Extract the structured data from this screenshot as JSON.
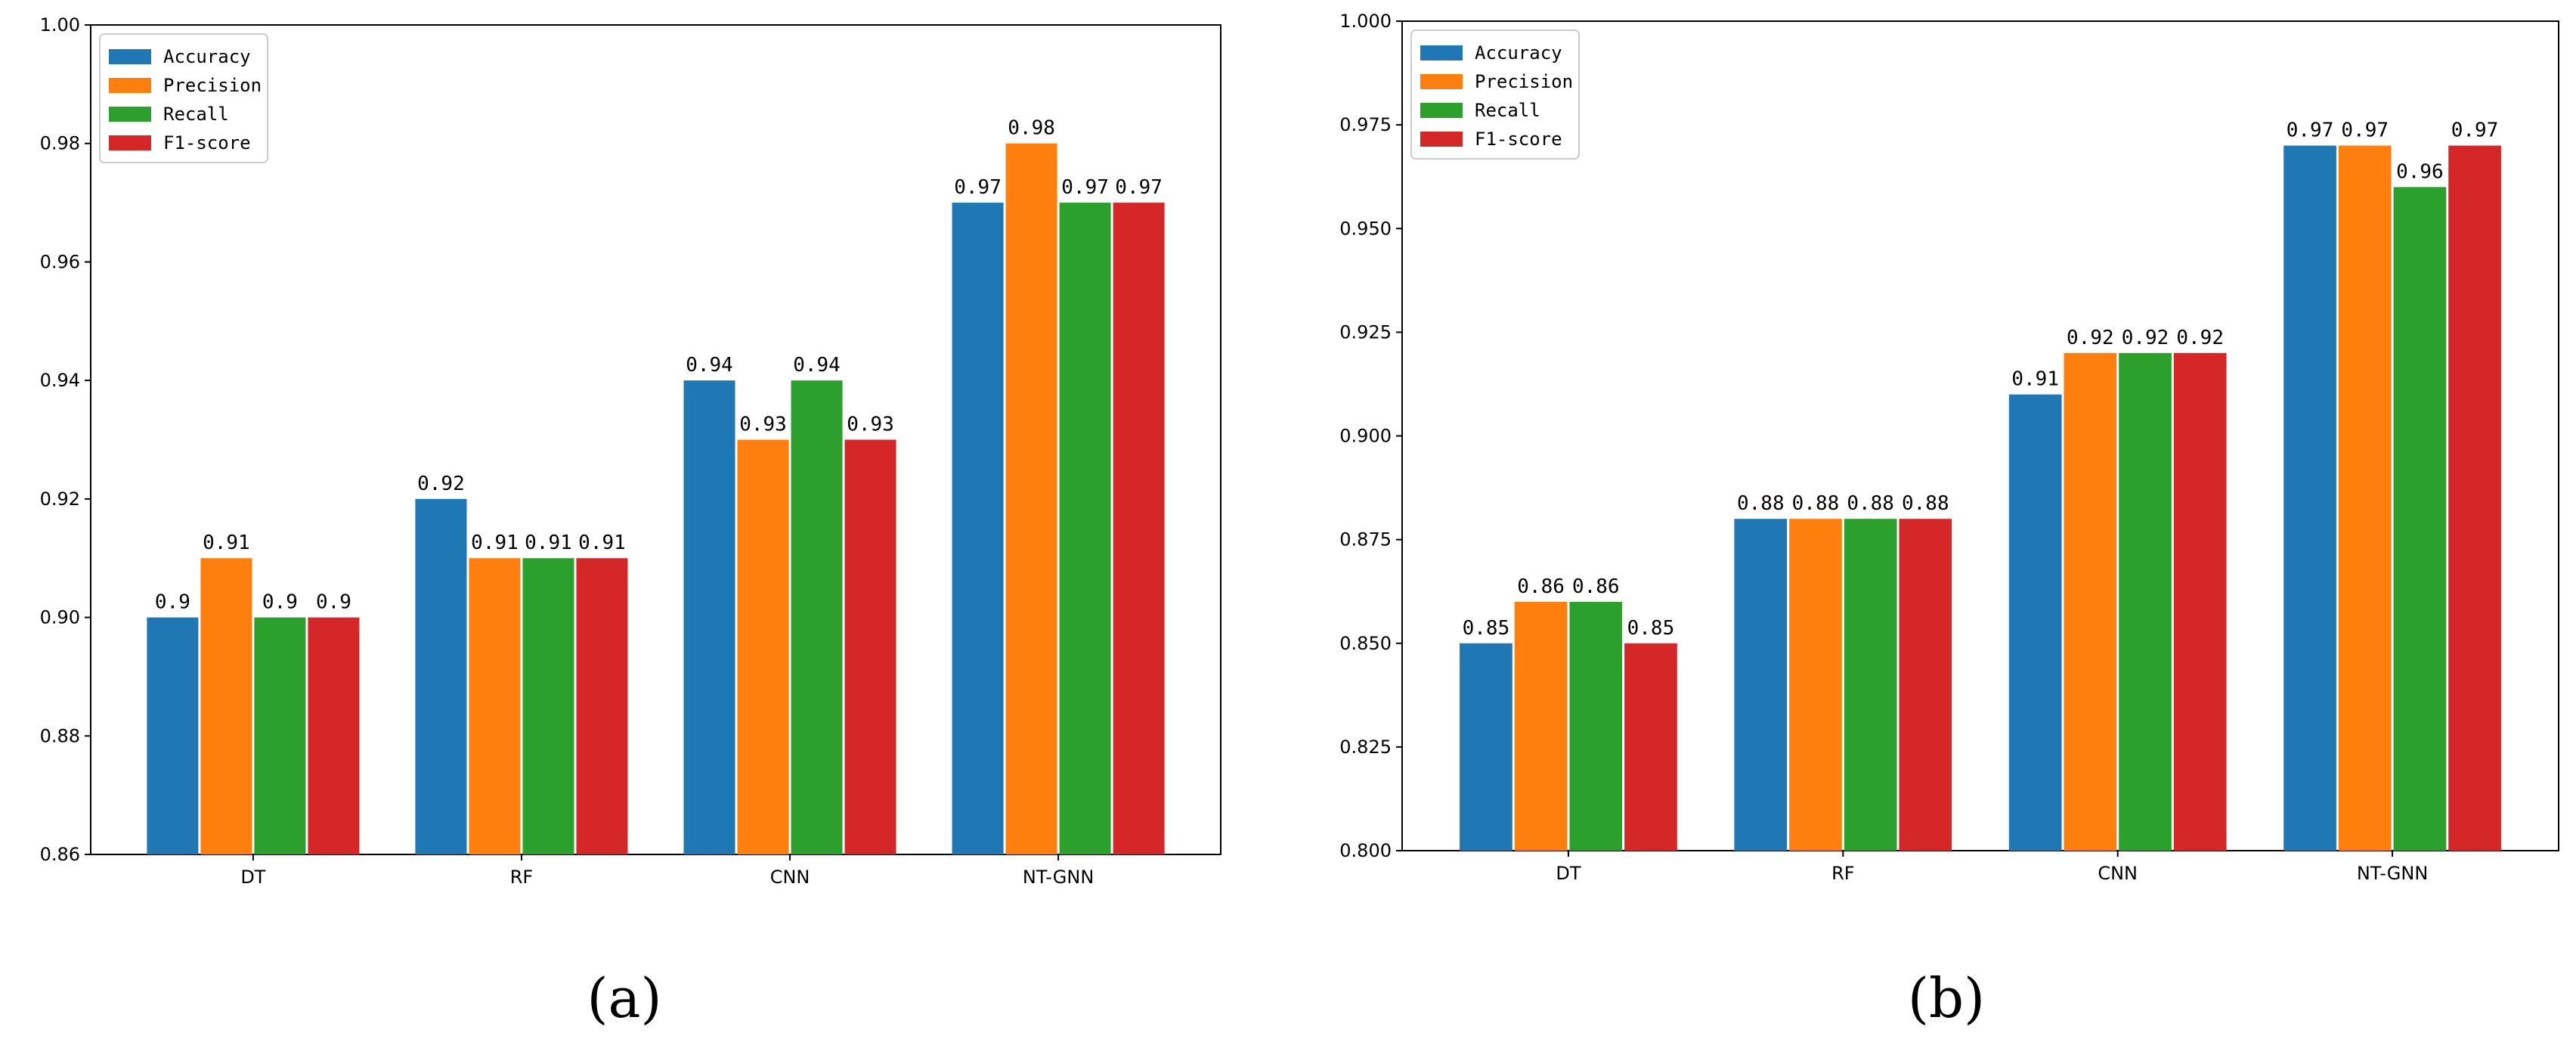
{
  "chart_data": [
    {
      "type": "bar",
      "panel_label": "(a)",
      "categories": [
        "DT",
        "RF",
        "CNN",
        "NT-GNN"
      ],
      "ylim": [
        0.86,
        1.0
      ],
      "yticks": [
        "0.86",
        "0.88",
        "0.90",
        "0.92",
        "0.94",
        "0.96",
        "0.98",
        "1.00"
      ],
      "legend_position": "top-left",
      "series": [
        {
          "name": "Accuracy",
          "color": "#1f77b4",
          "values": [
            0.9,
            0.92,
            0.94,
            0.97
          ],
          "labels": [
            "0.9",
            "0.92",
            "0.94",
            "0.97"
          ]
        },
        {
          "name": "Precision",
          "color": "#ff7f0e",
          "values": [
            0.91,
            0.91,
            0.93,
            0.98
          ],
          "labels": [
            "0.91",
            "0.91",
            "0.93",
            "0.98"
          ]
        },
        {
          "name": "Recall",
          "color": "#2ca02c",
          "values": [
            0.9,
            0.91,
            0.94,
            0.97
          ],
          "labels": [
            "0.9",
            "0.91",
            "0.94",
            "0.97"
          ]
        },
        {
          "name": "F1-score",
          "color": "#d62728",
          "values": [
            0.9,
            0.91,
            0.93,
            0.97
          ],
          "labels": [
            "0.9",
            "0.91",
            "0.93",
            "0.97"
          ]
        }
      ]
    },
    {
      "type": "bar",
      "panel_label": "(b)",
      "categories": [
        "DT",
        "RF",
        "CNN",
        "NT-GNN"
      ],
      "ylim": [
        0.8,
        1.0
      ],
      "yticks": [
        "0.800",
        "0.825",
        "0.850",
        "0.875",
        "0.900",
        "0.925",
        "0.950",
        "0.975",
        "1.000"
      ],
      "legend_position": "top-left",
      "series": [
        {
          "name": "Accuracy",
          "color": "#1f77b4",
          "values": [
            0.85,
            0.88,
            0.91,
            0.97
          ],
          "labels": [
            "0.85",
            "0.88",
            "0.91",
            "0.97"
          ]
        },
        {
          "name": "Precision",
          "color": "#ff7f0e",
          "values": [
            0.86,
            0.88,
            0.92,
            0.97
          ],
          "labels": [
            "0.86",
            "0.88",
            "0.92",
            "0.97"
          ]
        },
        {
          "name": "Recall",
          "color": "#2ca02c",
          "values": [
            0.86,
            0.88,
            0.92,
            0.96
          ],
          "labels": [
            "0.86",
            "0.88",
            "0.92",
            "0.96"
          ]
        },
        {
          "name": "F1-score",
          "color": "#d62728",
          "values": [
            0.85,
            0.88,
            0.92,
            0.97
          ],
          "labels": [
            "0.85",
            "0.88",
            "0.92",
            "0.97"
          ]
        }
      ]
    }
  ]
}
